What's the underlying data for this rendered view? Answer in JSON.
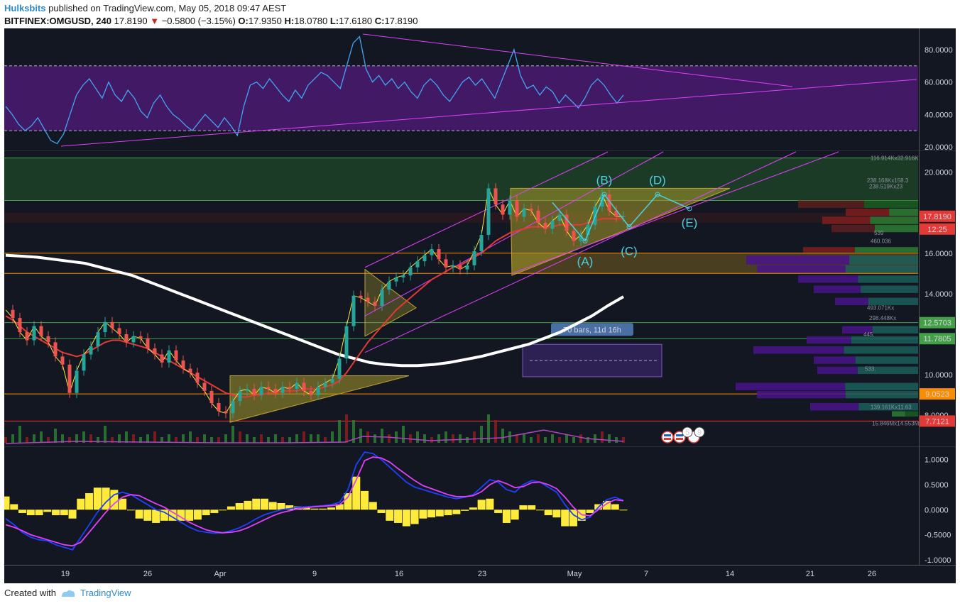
{
  "header": {
    "author": "Hulksbits",
    "published_text": "published on TradingView.com, May 05, 2018 09:47 AEST",
    "symbol": "BITFINEX:OMGUSD, 240",
    "last": "17.8190",
    "change": "−0.5800 (−3.15%)",
    "ohlc": [
      {
        "key": "O:",
        "value": "17.9350"
      },
      {
        "key": "H:",
        "value": "18.0780"
      },
      {
        "key": "L:",
        "value": "17.6180"
      },
      {
        "key": "C:",
        "value": "17.8190"
      }
    ]
  },
  "footer": {
    "created_with": "Created with",
    "brand": "TradingView"
  },
  "colors": {
    "background": "#131722",
    "rsi_band": "#6a1b9a",
    "rsi_line": "#42a5f5",
    "trendline": "#e040fb",
    "ma_white": "#ffffff",
    "ma_red": "#e53935",
    "ma_yellow": "#f5e642",
    "wave_labels": "#4dd0e1",
    "macd_hist": "#ffeb3b",
    "macd_line": "#1e40ff",
    "signal_line": "#e040fb"
  },
  "chart_data": [
    {
      "type": "line",
      "panel": "RSI",
      "y_ticks": [
        "80.0000",
        "60.0000",
        "40.0000",
        "20.0000"
      ],
      "ylim": [
        20,
        90
      ],
      "band": [
        30,
        70
      ],
      "series": [
        {
          "values": [
            45,
            40,
            34,
            30,
            33,
            38,
            31,
            24,
            22,
            28,
            40,
            52,
            58,
            62,
            56,
            50,
            60,
            52,
            48,
            55,
            50,
            42,
            38,
            47,
            52,
            45,
            40,
            37,
            33,
            30,
            35,
            40,
            36,
            32,
            38,
            33,
            27,
            45,
            58,
            60,
            56,
            62,
            57,
            52,
            48,
            55,
            50,
            58,
            62,
            66,
            64,
            60,
            56,
            70,
            84,
            88,
            68,
            60,
            64,
            58,
            62,
            56,
            60,
            54,
            50,
            58,
            62,
            58,
            52,
            48,
            54,
            60,
            63,
            58,
            62,
            56,
            50,
            60,
            70,
            80,
            64,
            56,
            58,
            52,
            57,
            54,
            47,
            52,
            48,
            44,
            50,
            58,
            62,
            58,
            52,
            47,
            52
          ]
        }
      ]
    },
    {
      "type": "line",
      "panel": "price",
      "y_ticks": [
        "20.0000",
        "16.0000",
        "14.0000",
        "10.0000",
        "8.0000"
      ],
      "ylim": [
        6.5,
        21.0
      ],
      "x_ticks": [
        "19",
        "26",
        "Apr",
        "9",
        "16",
        "23",
        "May",
        "7",
        "14",
        "21",
        "26"
      ],
      "price_tags": [
        {
          "label": "17.8190",
          "color": "#e53935"
        },
        {
          "label": "12:25",
          "color": "#e53935"
        },
        {
          "label": "12.5703",
          "color": "#43a047"
        },
        {
          "label": "11.7805",
          "color": "#43a047"
        },
        {
          "label": "9.0523",
          "color": "#fb8c00"
        },
        {
          "label": "7.7121",
          "color": "#e53935"
        }
      ],
      "levels": [
        {
          "price": 20.7,
          "color": "#43a047"
        },
        {
          "price": 18.6,
          "color": "#43a047"
        },
        {
          "price": 16.0,
          "color": "#fb8c00"
        },
        {
          "price": 15.0,
          "color": "#fb8c00"
        },
        {
          "price": 12.5703,
          "color": "#43a047"
        },
        {
          "price": 11.7805,
          "color": "#43a047"
        },
        {
          "price": 9.0523,
          "color": "#fb8c00"
        },
        {
          "price": 7.7121,
          "color": "#e53935"
        }
      ],
      "series": [
        {
          "values": [
            13.2,
            12.8,
            12.1,
            11.7,
            12.4,
            11.9,
            11.6,
            10.9,
            10.5,
            9.1,
            10.2,
            11.0,
            11.4,
            12.1,
            12.6,
            12.3,
            12.0,
            11.6,
            11.9,
            11.8,
            11.3,
            11.0,
            10.6,
            11.2,
            10.7,
            10.3,
            10.1,
            9.6,
            9.2,
            8.6,
            8.2,
            8.1,
            8.7,
            9.2,
            9.3,
            9.0,
            9.4,
            9.3,
            9.1,
            9.4,
            9.3,
            9.6,
            9.2,
            9.0,
            9.4,
            9.6,
            9.8,
            10.8,
            12.4,
            13.9,
            13.8,
            13.6,
            13.4,
            14.2,
            14.6,
            14.8,
            14.9,
            15.3,
            15.6,
            15.9,
            16.2,
            15.7,
            15.3,
            15.4,
            15.2,
            15.4,
            16.1,
            16.9,
            19.2,
            18.4,
            17.9,
            18.6,
            17.8,
            18.2,
            18.1,
            17.5,
            17.2,
            17.6,
            17.9,
            17.1,
            16.6,
            16.9,
            17.4,
            18.3,
            18.9,
            18.1,
            17.8,
            17.82
          ]
        },
        {
          "values": [
            12.9,
            12.7,
            12.4,
            12.1,
            11.9,
            11.7,
            11.5,
            11.3,
            11.1,
            11.0,
            10.9,
            11.0,
            11.2,
            11.4,
            11.6,
            11.7,
            11.7,
            11.6,
            11.5,
            11.4,
            11.3,
            11.1,
            10.9,
            10.7,
            10.5,
            10.3,
            10.1,
            9.9,
            9.7,
            9.5,
            9.3,
            9.1,
            9.0,
            8.9,
            8.9,
            9.0,
            9.0,
            9.1,
            9.1,
            9.2,
            9.2,
            9.2,
            9.3,
            9.3,
            9.3,
            9.4,
            9.5,
            9.7,
            10.1,
            10.6,
            11.1,
            11.6,
            12.0,
            12.4,
            12.8,
            13.2,
            13.5,
            13.8,
            14.1,
            14.4,
            14.7,
            14.9,
            15.1,
            15.3,
            15.4,
            15.6,
            15.8,
            16.0,
            16.3,
            16.6,
            16.8,
            17.0,
            17.1,
            17.2,
            17.3,
            17.3,
            17.3,
            17.3,
            17.4,
            17.4,
            17.4,
            17.4,
            17.5,
            17.6,
            17.7,
            17.7,
            17.7,
            17.7
          ]
        },
        {
          "values": [
            15.9,
            15.85,
            15.8,
            15.7,
            15.6,
            15.5,
            15.3,
            15.1,
            14.9,
            14.6,
            14.3,
            14.0,
            13.7,
            13.4,
            13.1,
            12.8,
            12.5,
            12.2,
            11.9,
            11.6,
            11.3,
            11.0,
            10.8,
            10.6,
            10.5,
            10.45,
            10.45,
            10.5,
            10.6,
            10.75,
            10.9,
            11.1,
            11.3,
            11.5,
            11.8,
            12.1,
            12.5,
            12.9,
            13.4,
            13.85
          ]
        }
      ],
      "volume": [
        0.2,
        0.3,
        0.6,
        0.2,
        0.3,
        0.4,
        0.2,
        0.5,
        0.3,
        0.2,
        0.3,
        0.4,
        0.3,
        0.2,
        0.6,
        0.2,
        0.3,
        0.4,
        0.3,
        0.2,
        0.3,
        0.4,
        0.2,
        0.3,
        0.2,
        0.3,
        0.4,
        0.2,
        0.3,
        0.2,
        0.2,
        0.3,
        0.6,
        0.4,
        0.3,
        0.2,
        0.3,
        0.2,
        0.3,
        0.2,
        0.2,
        0.3,
        0.4,
        0.3,
        0.3,
        0.2,
        0.4,
        0.8,
        1.0,
        0.8,
        0.5,
        0.4,
        0.3,
        0.5,
        0.3,
        0.4,
        0.6,
        0.3,
        0.4,
        0.3,
        0.2,
        0.3,
        0.4,
        0.3,
        0.3,
        0.2,
        0.4,
        0.6,
        1.0,
        0.8,
        0.5,
        0.4,
        0.3,
        0.3,
        0.2,
        0.3,
        0.2,
        0.3,
        0.2,
        0.3,
        0.2,
        0.3,
        0.2,
        0.3,
        0.4,
        0.3,
        0.2,
        0.2
      ],
      "wave_labels": [
        "(A)",
        "(B)",
        "(C)",
        "(D)",
        "(E)"
      ],
      "measure_label": "70 bars, 11d 16h",
      "volume_profile": [
        "116.914Kx32.916K",
        "238.168Kx158.3",
        "238.519Kx23",
        "539",
        "460.036",
        "493.071Kx",
        "298.448Kx",
        "445.",
        "533.",
        "139.161Kx11.63",
        "15.846Mx14.553M"
      ],
      "event_badges": [
        "5",
        "9"
      ]
    },
    {
      "type": "line",
      "panel": "MACD",
      "y_ticks": [
        "1.0000",
        "0.5000",
        "0.0000",
        "-0.5000",
        "-1.0000"
      ],
      "ylim": [
        -1.1,
        1.25
      ],
      "series": [
        {
          "values": [
            -0.18,
            -0.3,
            -0.45,
            -0.55,
            -0.6,
            -0.62,
            -0.7,
            -0.75,
            -0.8,
            -0.55,
            -0.3,
            -0.05,
            0.15,
            0.3,
            0.35,
            0.3,
            0.2,
            0.1,
            0.0,
            -0.05,
            -0.15,
            -0.25,
            -0.35,
            -0.42,
            -0.45,
            -0.47,
            -0.46,
            -0.42,
            -0.36,
            -0.28,
            -0.18,
            -0.1,
            -0.05,
            0.0,
            0.02,
            0.05,
            0.06,
            0.07,
            0.08,
            0.1,
            0.15,
            0.4,
            0.9,
            1.15,
            1.12,
            1.0,
            0.85,
            0.7,
            0.55,
            0.45,
            0.4,
            0.35,
            0.3,
            0.25,
            0.22,
            0.25,
            0.3,
            0.45,
            0.6,
            0.55,
            0.4,
            0.35,
            0.5,
            0.58,
            0.55,
            0.45,
            0.35,
            0.1,
            -0.1,
            -0.2,
            -0.15,
            0.05,
            0.2,
            0.25,
            0.18
          ]
        },
        {
          "values": [
            -0.3,
            -0.35,
            -0.42,
            -0.5,
            -0.55,
            -0.6,
            -0.65,
            -0.7,
            -0.72,
            -0.65,
            -0.45,
            -0.25,
            -0.05,
            0.12,
            0.25,
            0.3,
            0.28,
            0.2,
            0.12,
            0.05,
            -0.05,
            -0.15,
            -0.25,
            -0.33,
            -0.4,
            -0.44,
            -0.46,
            -0.45,
            -0.42,
            -0.36,
            -0.28,
            -0.2,
            -0.12,
            -0.06,
            -0.02,
            0.02,
            0.04,
            0.06,
            0.07,
            0.08,
            0.1,
            0.25,
            0.6,
            0.98,
            1.05,
            1.03,
            0.95,
            0.82,
            0.7,
            0.58,
            0.48,
            0.42,
            0.36,
            0.3,
            0.26,
            0.26,
            0.28,
            0.36,
            0.5,
            0.58,
            0.52,
            0.44,
            0.46,
            0.54,
            0.55,
            0.5,
            0.42,
            0.25,
            0.05,
            -0.1,
            -0.12,
            0.0,
            0.12,
            0.2,
            0.18
          ]
        }
      ]
    }
  ]
}
